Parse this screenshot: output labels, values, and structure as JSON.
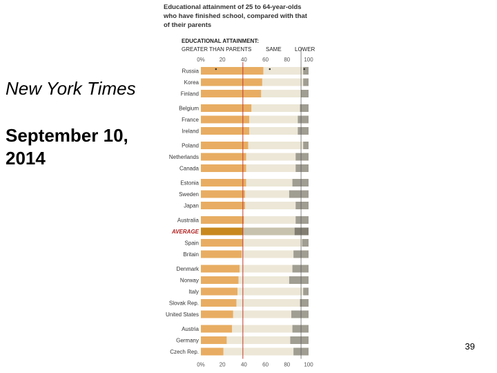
{
  "slide": {
    "source": "New York Times",
    "date": "September 10, 2014",
    "page_number": "39"
  },
  "chart_data": {
    "type": "bar",
    "orientation": "horizontal",
    "stacked": true,
    "title_lines": [
      "Educational attainment of 25 to 64-year-olds",
      "who have finished school, compared with that",
      "of their parents"
    ],
    "header_title": "EDUCATIONAL ATTAINMENT:",
    "header_labels": [
      "GREATER THAN PARENTS",
      "SAME",
      "LOWER"
    ],
    "x_ticks": [
      "0%",
      "20",
      "40",
      "60",
      "80",
      "100"
    ],
    "xlim": [
      0,
      100
    ],
    "average_line": 39,
    "categories": [
      "Russia",
      "Korea",
      "Finland",
      "Belgium",
      "France",
      "Ireland",
      "Poland",
      "Netherlands",
      "Canada",
      "Estonia",
      "Sweden",
      "Japan",
      "Australia",
      "AVERAGE",
      "Spain",
      "Britain",
      "Denmark",
      "Norway",
      "Italy",
      "Slovak Rep.",
      "United States",
      "Austria",
      "Germany",
      "Czech Rep."
    ],
    "groups": [
      3,
      3,
      3,
      3,
      4,
      5,
      3
    ],
    "highlight_category": "AVERAGE",
    "series": [
      {
        "name": "GREATER THAN PARENTS",
        "values": [
          58,
          57,
          56,
          47,
          45,
          45,
          44,
          42,
          42,
          42,
          41,
          41,
          40,
          39,
          39,
          38,
          36,
          35,
          34,
          33,
          30,
          29,
          24,
          21
        ]
      },
      {
        "name": "SAME",
        "values": [
          37,
          38,
          37,
          45,
          45,
          45,
          51,
          46,
          46,
          43,
          41,
          47,
          48,
          48,
          55,
          48,
          49,
          47,
          61,
          59,
          54,
          56,
          59,
          65
        ]
      },
      {
        "name": "LOWER",
        "values": [
          5,
          5,
          7,
          8,
          10,
          10,
          5,
          12,
          12,
          15,
          18,
          12,
          12,
          13,
          6,
          14,
          15,
          18,
          5,
          8,
          16,
          15,
          17,
          14
        ]
      }
    ],
    "colors": {
      "greater": "#e8ad62",
      "same": "#ece7d7",
      "lower": "#a09d92",
      "average_greater": "#c8891e",
      "average_same": "#c7c2ad",
      "average_lower": "#827e72",
      "average_line": "#c0392b",
      "marker_line": "#555555"
    }
  }
}
